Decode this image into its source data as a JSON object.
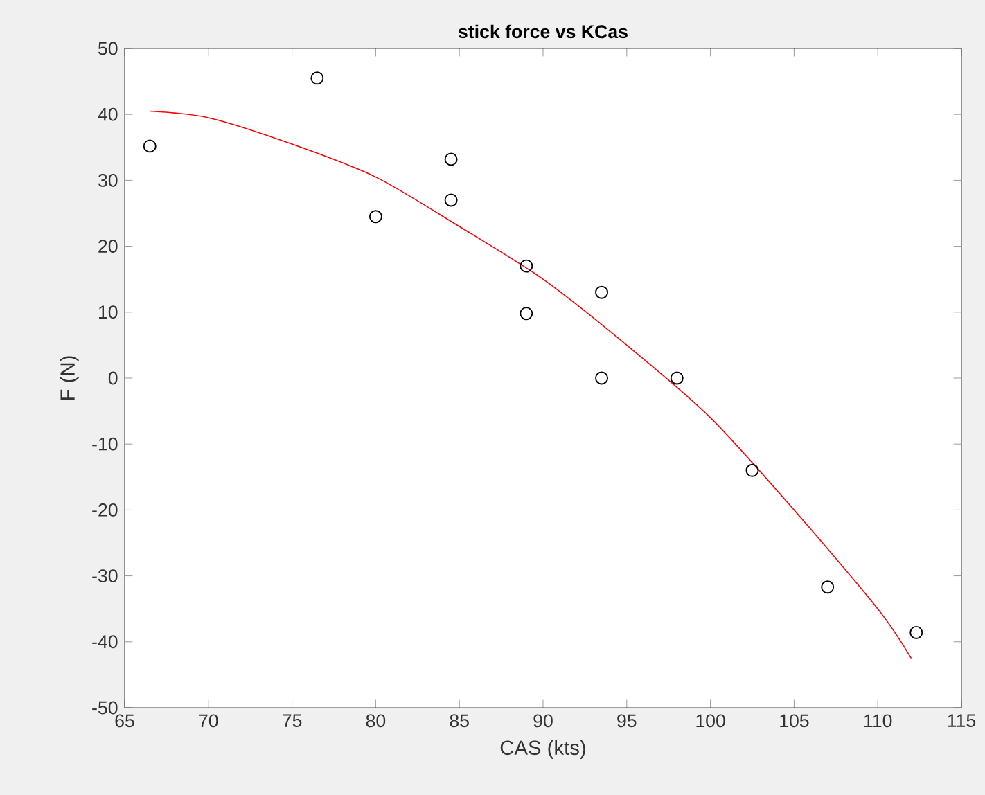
{
  "chart_data": {
    "type": "scatter",
    "title": "stick force vs KCas",
    "xlabel": "CAS (kts)",
    "ylabel": "F (N)",
    "xlim": [
      65,
      115
    ],
    "ylim": [
      -50,
      50
    ],
    "xticks": [
      65,
      70,
      75,
      80,
      85,
      90,
      95,
      100,
      105,
      110,
      115
    ],
    "yticks": [
      -50,
      -40,
      -30,
      -20,
      -10,
      0,
      10,
      20,
      30,
      40,
      50
    ],
    "grid": false,
    "series": [
      {
        "color": "#000000",
        "marker": "circle",
        "x": [
          66.5,
          76.5,
          80,
          84.5,
          84.5,
          89,
          89,
          93.5,
          93.5,
          98,
          102.5,
          107,
          112.3
        ],
        "values": [
          35.2,
          45.5,
          24.5,
          33.2,
          27,
          17,
          9.8,
          13,
          0,
          0,
          -14,
          -31.7,
          -38.6
        ]
      },
      {
        "type": "line",
        "color": "#ff0000",
        "marker": "none",
        "x": [
          66.5,
          70,
          75,
          80,
          85,
          90,
          95,
          100,
          105,
          110,
          112
        ],
        "values": [
          40.5,
          39.5,
          35.5,
          30.5,
          23,
          15,
          5,
          -6,
          -20,
          -35,
          -42.5
        ]
      }
    ]
  }
}
